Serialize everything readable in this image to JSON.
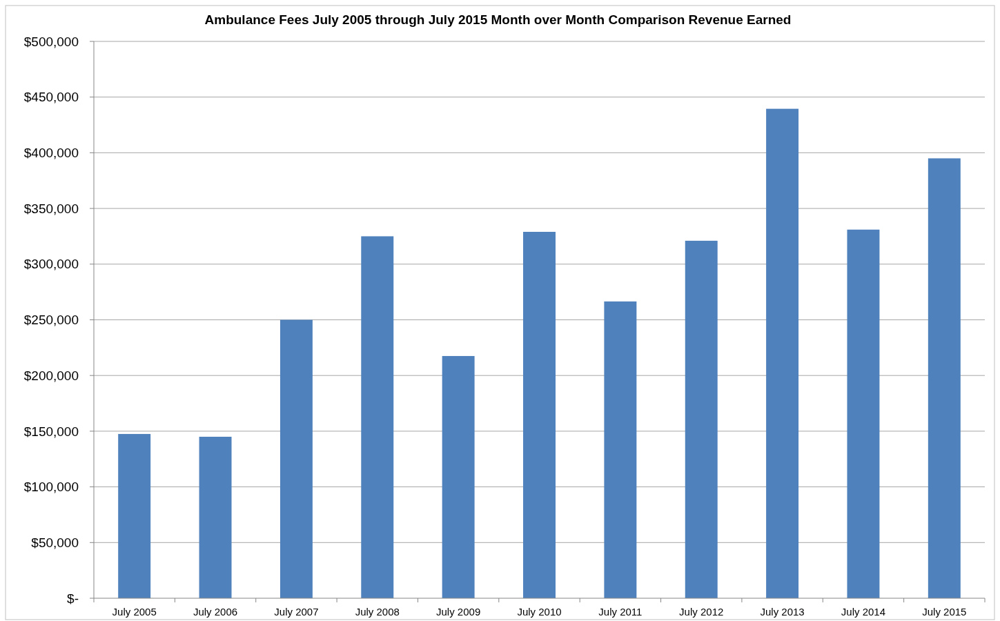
{
  "chart_data": {
    "type": "bar",
    "title": "Ambulance Fees July 2005 through July 2015 Month over Month Comparison Revenue Earned",
    "categories": [
      "July 2005",
      "July 2006",
      "July 2007",
      "July 2008",
      "July 2009",
      "July 2010",
      "July 2011",
      "July 2012",
      "July 2013",
      "July 2014",
      "July 2015"
    ],
    "values": [
      147500,
      145000,
      250000,
      325000,
      217500,
      329000,
      266500,
      321000,
      439500,
      331000,
      395000
    ],
    "color": "#4f81bd",
    "ylim": [
      0,
      500000
    ],
    "yticks": [
      {
        "value": 0,
        "label": "$-"
      },
      {
        "value": 50000,
        "label": "$50,000"
      },
      {
        "value": 100000,
        "label": "$100,000"
      },
      {
        "value": 150000,
        "label": "$150,000"
      },
      {
        "value": 200000,
        "label": "$200,000"
      },
      {
        "value": 250000,
        "label": "$250,000"
      },
      {
        "value": 300000,
        "label": "$300,000"
      },
      {
        "value": 350000,
        "label": "$350,000"
      },
      {
        "value": 400000,
        "label": "$400,000"
      },
      {
        "value": 450000,
        "label": "$450,000"
      },
      {
        "value": 500000,
        "label": "$500,000"
      }
    ],
    "grid": "y"
  }
}
